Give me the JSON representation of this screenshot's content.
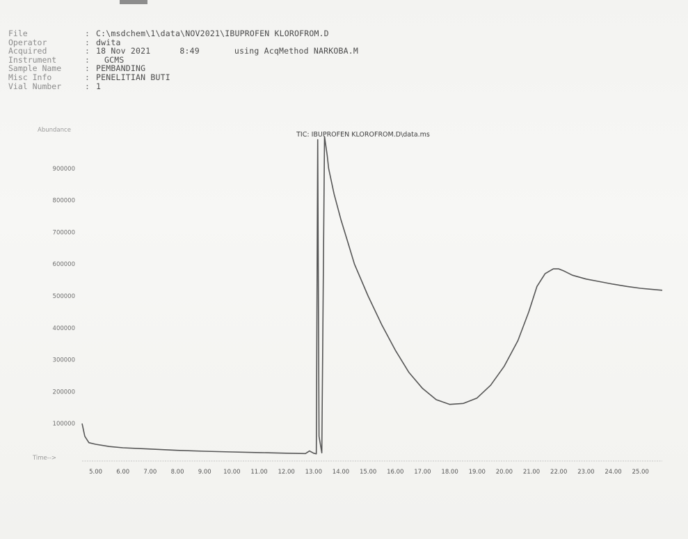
{
  "header": {
    "fields": [
      {
        "label": "File",
        "value": "C:\\msdchem\\1\\data\\NOV2021\\IBUPROFEN KLOROFROM.D"
      },
      {
        "label": "Operator",
        "value": "dwita"
      },
      {
        "label": "Acquired",
        "value": "18 Nov 2021",
        "time": "8:49",
        "method": "using AcqMethod NARKOBA.M"
      },
      {
        "label": "Instrument",
        "value": "GCMS"
      },
      {
        "label": "Sample Name",
        "value": "PEMBANDING"
      },
      {
        "label": "Misc Info",
        "value": "PENELITIAN BUTI"
      },
      {
        "label": "Vial Number",
        "value": "1"
      }
    ]
  },
  "chart_data": {
    "type": "line",
    "title": "TIC: IBUPROFEN KLOROFROM.D\\data.ms",
    "ylabel": "Abundance",
    "xlabel": "Time-->",
    "xlim": [
      4.5,
      25.8
    ],
    "ylim": [
      0,
      1000000
    ],
    "x_ticks": [
      5.0,
      6.0,
      7.0,
      8.0,
      9.0,
      10.0,
      11.0,
      12.0,
      13.0,
      14.0,
      15.0,
      16.0,
      17.0,
      18.0,
      19.0,
      20.0,
      21.0,
      22.0,
      23.0,
      24.0,
      25.0
    ],
    "x_tick_labels": [
      "5.00",
      "6.00",
      "7.00",
      "8.00",
      "9.00",
      "10.00",
      "11.00",
      "12.00",
      "13.00",
      "14.00",
      "15.00",
      "16.00",
      "17.00",
      "18.00",
      "19.00",
      "20.00",
      "21.00",
      "22.00",
      "23.00",
      "24.00",
      "25.00"
    ],
    "y_ticks": [
      100000,
      200000,
      300000,
      400000,
      500000,
      600000,
      700000,
      800000,
      900000
    ],
    "y_tick_labels": [
      "100000",
      "200000",
      "300000",
      "400000",
      "500000",
      "600000",
      "700000",
      "800000",
      "900000"
    ],
    "grid": false,
    "line_color": "#555555",
    "series": [
      {
        "x": [
          4.5,
          4.6,
          4.75,
          5.0,
          5.5,
          6.0,
          7.0,
          8.0,
          9.0,
          10.0,
          11.0,
          12.0,
          12.7,
          12.85,
          13.0,
          13.1,
          13.15,
          13.2,
          13.3,
          13.4,
          13.5,
          13.55,
          13.75,
          14.0,
          14.25,
          14.5,
          15.0,
          15.5,
          16.0,
          16.5,
          17.0,
          17.5,
          18.0,
          18.5,
          19.0,
          19.5,
          20.0,
          20.5,
          20.9,
          21.2,
          21.5,
          21.8,
          22.0,
          22.2,
          22.5,
          23.0,
          23.5,
          24.0,
          24.5,
          25.0,
          25.5,
          25.8
        ],
        "y": [
          100000,
          60000,
          40000,
          35000,
          28000,
          24000,
          20000,
          16000,
          13000,
          11000,
          9000,
          7000,
          6000,
          14000,
          7000,
          5000,
          990000,
          60000,
          8000,
          1000000,
          940000,
          900000,
          820000,
          740000,
          670000,
          600000,
          500000,
          410000,
          330000,
          260000,
          210000,
          175000,
          160000,
          163000,
          180000,
          220000,
          280000,
          360000,
          450000,
          530000,
          570000,
          585000,
          585000,
          578000,
          565000,
          553000,
          545000,
          537000,
          530000,
          524000,
          520000,
          518000
        ]
      }
    ]
  }
}
